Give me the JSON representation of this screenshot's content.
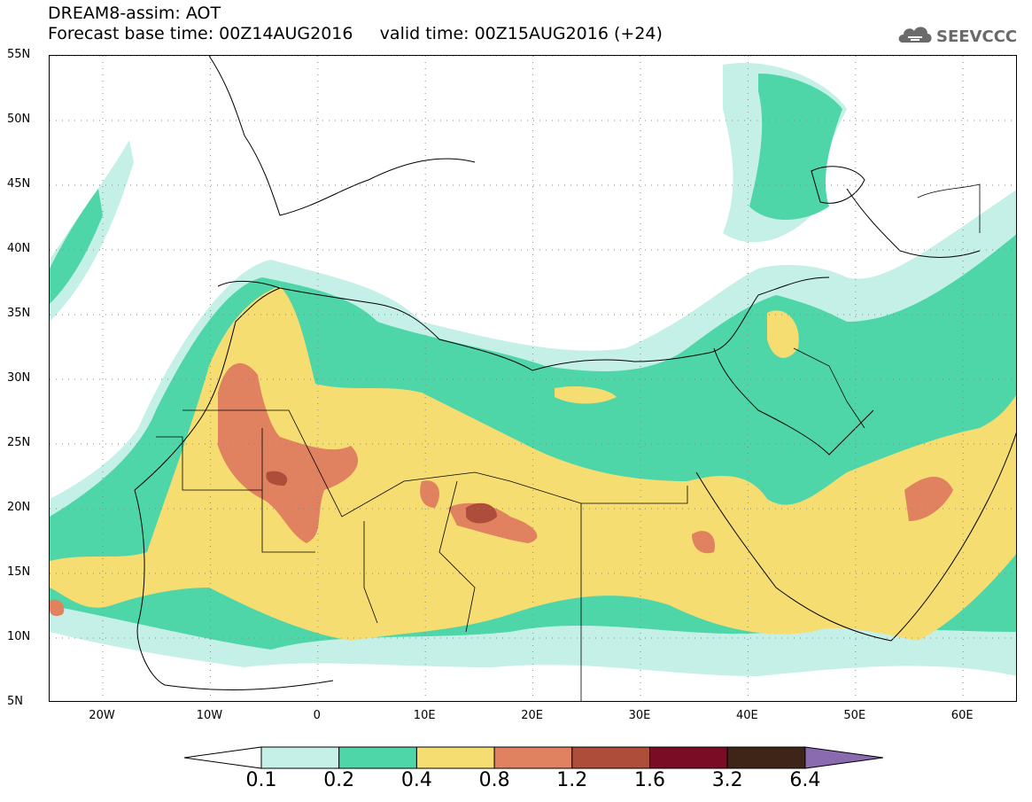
{
  "title": {
    "line1": "DREAM8-assim: AOT",
    "line2": "Forecast base time: 00Z14AUG2016     valid time: 00Z15AUG2016 (+24)"
  },
  "logo_text": "SEEVCCC",
  "map": {
    "lat_range": [
      5,
      55
    ],
    "lon_range": [
      -25,
      65
    ],
    "lat_ticks": [
      "55N",
      "50N",
      "45N",
      "40N",
      "35N",
      "30N",
      "25N",
      "20N",
      "15N",
      "10N",
      "5N"
    ],
    "lon_ticks": [
      "20W",
      "10W",
      "0",
      "10E",
      "20E",
      "30E",
      "40E",
      "50E",
      "60E"
    ],
    "gridlines": "dotted"
  },
  "colorbar": {
    "labels": [
      "0.1",
      "0.2",
      "0.4",
      "0.8",
      "1.2",
      "1.6",
      "3.2",
      "6.4"
    ],
    "colors": [
      "#ffffff",
      "#c4f0e8",
      "#4fd6a8",
      "#f5dd72",
      "#e08260",
      "#ad4d3a",
      "#7a0c26",
      "#3e2518",
      "#8a6bb0"
    ]
  }
}
